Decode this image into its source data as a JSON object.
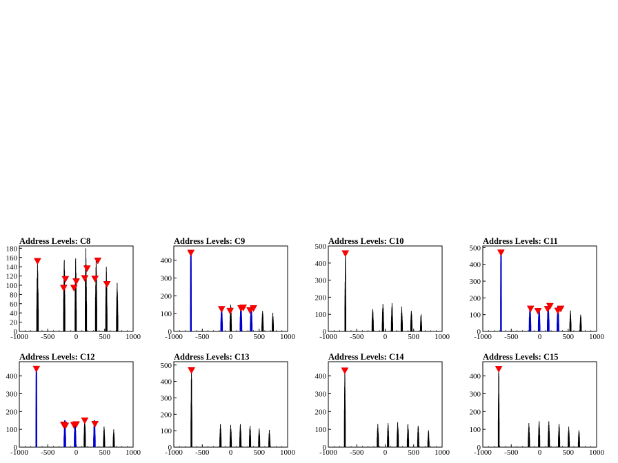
{
  "colors": {
    "trace": "#000000",
    "highlight": "#0000cc",
    "marker": "#ff0000"
  },
  "chart_data": [
    {
      "type": "line",
      "title": "Address Levels: C8",
      "xlim": [
        -1000,
        1000
      ],
      "ylim": [
        0,
        185
      ],
      "xticks": [
        "-1000",
        "-500",
        "0",
        "500",
        "1000"
      ],
      "yticks": [
        "0",
        "20",
        "40",
        "60",
        "80",
        "100",
        "120",
        "140",
        "160",
        "180"
      ],
      "ytick_values": [
        0,
        20,
        40,
        60,
        80,
        100,
        120,
        140,
        160,
        180
      ],
      "peaks": [
        {
          "x": -680,
          "y": 150,
          "w": 28,
          "blue": false
        },
        {
          "x": -210,
          "y": 155,
          "w": 26,
          "blue": false
        },
        {
          "x": -10,
          "y": 158,
          "w": 24,
          "blue": false
        },
        {
          "x": 170,
          "y": 180,
          "w": 26,
          "blue": false
        },
        {
          "x": 350,
          "y": 160,
          "w": 26,
          "blue": false
        },
        {
          "x": 530,
          "y": 140,
          "w": 26,
          "blue": false
        },
        {
          "x": 720,
          "y": 105,
          "w": 26,
          "blue": false
        }
      ],
      "markers": [
        {
          "x": -680,
          "y": 151
        },
        {
          "x": -220,
          "y": 93
        },
        {
          "x": -190,
          "y": 112
        },
        {
          "x": -40,
          "y": 93
        },
        {
          "x": 0,
          "y": 107
        },
        {
          "x": 150,
          "y": 114
        },
        {
          "x": 190,
          "y": 135
        },
        {
          "x": 330,
          "y": 113
        },
        {
          "x": 380,
          "y": 152
        },
        {
          "x": 540,
          "y": 101
        }
      ]
    },
    {
      "type": "line",
      "title": "Address Levels: C9",
      "xlim": [
        -1000,
        1000
      ],
      "ylim": [
        0,
        480
      ],
      "xticks": [
        "-1000",
        "-500",
        "0",
        "500",
        "1000"
      ],
      "yticks": [
        "0",
        "100",
        "200",
        "300",
        "400"
      ],
      "ytick_values": [
        0,
        100,
        200,
        300,
        400
      ],
      "peaks": [
        {
          "x": -700,
          "y": 450,
          "w": 10,
          "blue": true
        },
        {
          "x": -160,
          "y": 130,
          "w": 24,
          "blue": true
        },
        {
          "x": 0,
          "y": 150,
          "w": 26,
          "blue": false
        },
        {
          "x": 180,
          "y": 145,
          "w": 26,
          "blue": true
        },
        {
          "x": 360,
          "y": 140,
          "w": 26,
          "blue": true
        },
        {
          "x": 560,
          "y": 115,
          "w": 26,
          "blue": false
        },
        {
          "x": 740,
          "y": 105,
          "w": 24,
          "blue": false
        }
      ],
      "markers": [
        {
          "x": -700,
          "y": 438
        },
        {
          "x": -160,
          "y": 122
        },
        {
          "x": -10,
          "y": 112
        },
        {
          "x": 180,
          "y": 127
        },
        {
          "x": 220,
          "y": 130
        },
        {
          "x": 340,
          "y": 115
        },
        {
          "x": 400,
          "y": 127
        }
      ]
    },
    {
      "type": "line",
      "title": "Address Levels: C10",
      "xlim": [
        -1000,
        1000
      ],
      "ylim": [
        0,
        500
      ],
      "xticks": [
        "-1000",
        "-500",
        "0",
        "500",
        "1000"
      ],
      "yticks": [
        "0",
        "100",
        "200",
        "300",
        "400",
        "500"
      ],
      "ytick_values": [
        0,
        100,
        200,
        300,
        400,
        500
      ],
      "peaks": [
        {
          "x": -700,
          "y": 460,
          "w": 18,
          "blue": false
        },
        {
          "x": -220,
          "y": 130,
          "w": 26,
          "blue": false
        },
        {
          "x": -40,
          "y": 160,
          "w": 26,
          "blue": false
        },
        {
          "x": 120,
          "y": 165,
          "w": 26,
          "blue": false
        },
        {
          "x": 290,
          "y": 145,
          "w": 26,
          "blue": false
        },
        {
          "x": 460,
          "y": 120,
          "w": 26,
          "blue": false
        },
        {
          "x": 630,
          "y": 100,
          "w": 24,
          "blue": false
        }
      ],
      "markers": [
        {
          "x": -700,
          "y": 453
        }
      ]
    },
    {
      "type": "line",
      "title": "Address Levels: C11",
      "xlim": [
        -1000,
        1000
      ],
      "ylim": [
        0,
        510
      ],
      "xticks": [
        "-1000",
        "-500",
        "0",
        "500",
        "1000"
      ],
      "yticks": [
        "0",
        "100",
        "200",
        "300",
        "400",
        "500"
      ],
      "ytick_values": [
        0,
        100,
        200,
        300,
        400,
        500
      ],
      "peaks": [
        {
          "x": -680,
          "y": 480,
          "w": 10,
          "blue": true
        },
        {
          "x": -170,
          "y": 145,
          "w": 24,
          "blue": true
        },
        {
          "x": -10,
          "y": 140,
          "w": 24,
          "blue": true
        },
        {
          "x": 150,
          "y": 155,
          "w": 26,
          "blue": true
        },
        {
          "x": 320,
          "y": 150,
          "w": 26,
          "blue": true
        },
        {
          "x": 540,
          "y": 125,
          "w": 24,
          "blue": false
        },
        {
          "x": 720,
          "y": 100,
          "w": 24,
          "blue": false
        }
      ],
      "markers": [
        {
          "x": -680,
          "y": 467
        },
        {
          "x": -160,
          "y": 132
        },
        {
          "x": -30,
          "y": 118
        },
        {
          "x": 140,
          "y": 130
        },
        {
          "x": 180,
          "y": 148
        },
        {
          "x": 320,
          "y": 120
        },
        {
          "x": 370,
          "y": 132
        }
      ]
    },
    {
      "type": "line",
      "title": "Address Levels: C12",
      "xlim": [
        -1000,
        1000
      ],
      "ylim": [
        0,
        480
      ],
      "xticks": [
        "-1000",
        "-500",
        "0",
        "500",
        "1000"
      ],
      "yticks": [
        "0",
        "100",
        "200",
        "300",
        "400"
      ],
      "ytick_values": [
        0,
        100,
        200,
        300,
        400
      ],
      "peaks": [
        {
          "x": -700,
          "y": 450,
          "w": 10,
          "blue": true
        },
        {
          "x": -200,
          "y": 150,
          "w": 24,
          "blue": true
        },
        {
          "x": -20,
          "y": 140,
          "w": 24,
          "blue": true
        },
        {
          "x": 150,
          "y": 160,
          "w": 26,
          "blue": false
        },
        {
          "x": 320,
          "y": 150,
          "w": 24,
          "blue": true
        },
        {
          "x": 490,
          "y": 115,
          "w": 24,
          "blue": false
        },
        {
          "x": 660,
          "y": 100,
          "w": 24,
          "blue": false
        }
      ],
      "markers": [
        {
          "x": -700,
          "y": 437
        },
        {
          "x": -220,
          "y": 123
        },
        {
          "x": -190,
          "y": 117
        },
        {
          "x": -40,
          "y": 121
        },
        {
          "x": 0,
          "y": 125
        },
        {
          "x": 150,
          "y": 146
        },
        {
          "x": 330,
          "y": 127
        }
      ]
    },
    {
      "type": "line",
      "title": "Address Levels: C13",
      "xlim": [
        -1000,
        1000
      ],
      "ylim": [
        0,
        520
      ],
      "xticks": [
        "-1000",
        "-500",
        "0",
        "500",
        "1000"
      ],
      "yticks": [
        "0",
        "100",
        "200",
        "300",
        "400",
        "500"
      ],
      "ytick_values": [
        0,
        100,
        200,
        300,
        400,
        500
      ],
      "peaks": [
        {
          "x": -690,
          "y": 470,
          "w": 18,
          "blue": false
        },
        {
          "x": -180,
          "y": 140,
          "w": 26,
          "blue": false
        },
        {
          "x": 0,
          "y": 135,
          "w": 26,
          "blue": false
        },
        {
          "x": 170,
          "y": 140,
          "w": 26,
          "blue": false
        },
        {
          "x": 340,
          "y": 130,
          "w": 26,
          "blue": false
        },
        {
          "x": 500,
          "y": 115,
          "w": 24,
          "blue": false
        },
        {
          "x": 680,
          "y": 105,
          "w": 24,
          "blue": false
        }
      ],
      "markers": [
        {
          "x": -690,
          "y": 464
        }
      ]
    },
    {
      "type": "line",
      "title": "Address Levels: C14",
      "xlim": [
        -1000,
        1000
      ],
      "ylim": [
        0,
        480
      ],
      "xticks": [
        "-1000",
        "-500",
        "0",
        "500",
        "1000"
      ],
      "yticks": [
        "0",
        "100",
        "200",
        "300",
        "400"
      ],
      "ytick_values": [
        0,
        100,
        200,
        300,
        400
      ],
      "peaks": [
        {
          "x": -710,
          "y": 440,
          "w": 18,
          "blue": false
        },
        {
          "x": -130,
          "y": 130,
          "w": 26,
          "blue": false
        },
        {
          "x": 50,
          "y": 135,
          "w": 26,
          "blue": false
        },
        {
          "x": 220,
          "y": 140,
          "w": 26,
          "blue": false
        },
        {
          "x": 400,
          "y": 130,
          "w": 26,
          "blue": false
        },
        {
          "x": 580,
          "y": 120,
          "w": 24,
          "blue": false
        },
        {
          "x": 760,
          "y": 95,
          "w": 24,
          "blue": false
        }
      ],
      "markers": [
        {
          "x": -710,
          "y": 427
        }
      ]
    },
    {
      "type": "line",
      "title": "Address Levels: C15",
      "xlim": [
        -1000,
        1000
      ],
      "ylim": [
        0,
        480
      ],
      "xticks": [
        "-1000",
        "-500",
        "0",
        "500",
        "1000"
      ],
      "yticks": [
        "0",
        "100",
        "200",
        "300",
        "400"
      ],
      "ytick_values": [
        0,
        100,
        200,
        300,
        400
      ],
      "peaks": [
        {
          "x": -720,
          "y": 445,
          "w": 16,
          "blue": false
        },
        {
          "x": -190,
          "y": 135,
          "w": 26,
          "blue": false
        },
        {
          "x": -10,
          "y": 145,
          "w": 26,
          "blue": false
        },
        {
          "x": 160,
          "y": 145,
          "w": 26,
          "blue": false
        },
        {
          "x": 340,
          "y": 130,
          "w": 26,
          "blue": false
        },
        {
          "x": 510,
          "y": 115,
          "w": 24,
          "blue": false
        },
        {
          "x": 690,
          "y": 95,
          "w": 24,
          "blue": false
        }
      ],
      "markers": [
        {
          "x": -720,
          "y": 436
        }
      ]
    }
  ]
}
